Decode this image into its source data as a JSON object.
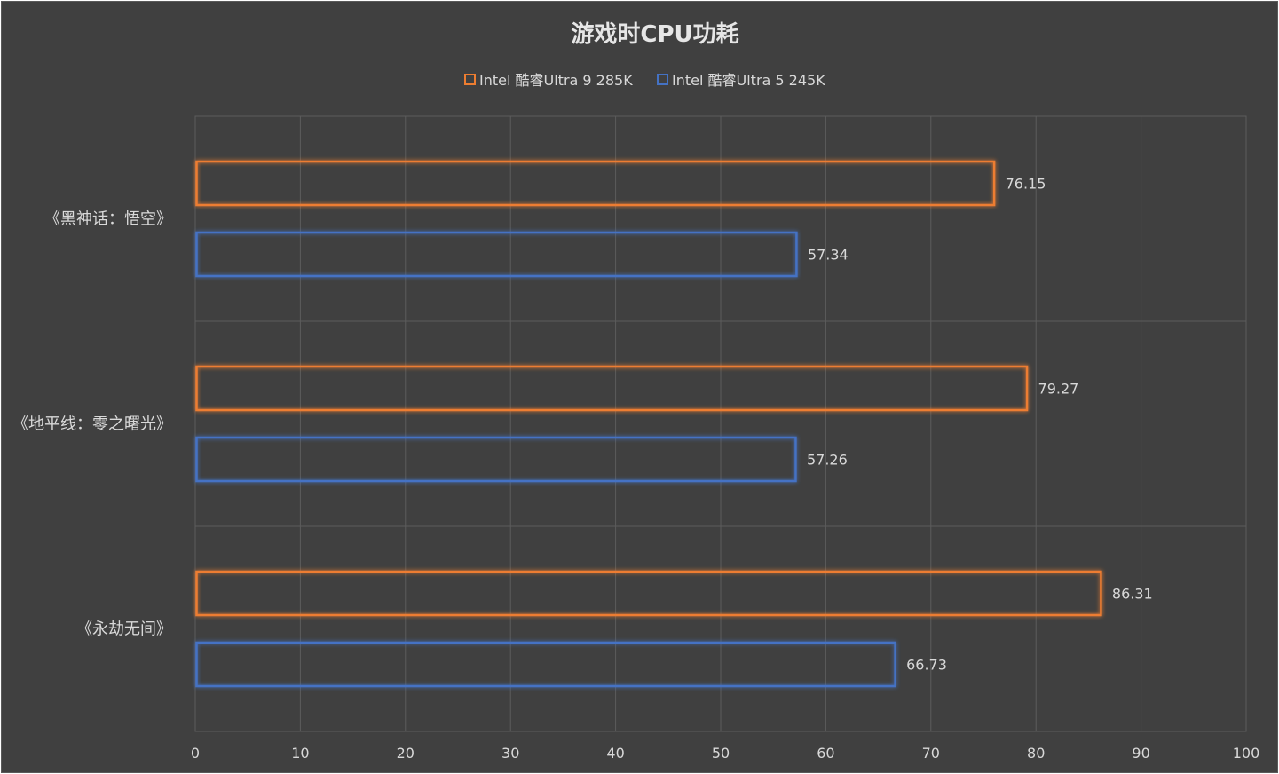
{
  "chart_data": {
    "type": "bar",
    "orientation": "horizontal",
    "title": "游戏时CPU功耗",
    "categories": [
      "《黑神话：悟空》",
      "《地平线：零之曙光》",
      "《永劫无间》"
    ],
    "series": [
      {
        "name": "Intel 酷睿Ultra 9 285K",
        "values": [
          76.15,
          79.27,
          86.31
        ],
        "color": "#ed7d31"
      },
      {
        "name": "Intel 酷睿Ultra 5 245K",
        "values": [
          57.34,
          57.26,
          66.73
        ],
        "color": "#4472c4"
      }
    ],
    "xlim": [
      0,
      100
    ],
    "xticks": [
      0,
      10,
      20,
      30,
      40,
      50,
      60,
      70,
      80,
      90,
      100
    ],
    "grid": true,
    "legend_position": "top",
    "bar_style": "outline-glow",
    "background": "#404040"
  }
}
